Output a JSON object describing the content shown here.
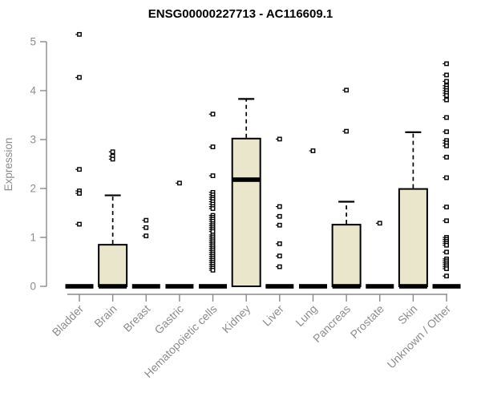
{
  "chart_data": {
    "type": "boxplot",
    "title": "ENSG00000227713 - AC116609.1",
    "ylabel": "Expression",
    "xlabel": "",
    "ylim": [
      0,
      5.3
    ],
    "yticks": [
      0,
      1,
      2,
      3,
      4,
      5
    ],
    "grid": false,
    "legend": "none",
    "colors": {
      "box_fill": "#EAE6CC",
      "box_border": "#000000",
      "median": "#000000",
      "whisker": "#000000",
      "axis": "#8a8a8a",
      "tick_label": "#8c8c8c",
      "title": "#000000",
      "background": "#ffffff"
    },
    "categories": [
      "Bladder",
      "Brain",
      "Breast",
      "Gastric",
      "Hematopoietic cells",
      "Kidney",
      "Liver",
      "Lung",
      "Pancreas",
      "Prostate",
      "Skin",
      "Unknown / Other"
    ],
    "series": [
      {
        "label": "Bladder",
        "whisker_low": 0,
        "q1": 0,
        "median": 0,
        "q3": 0,
        "whisker_high": 0,
        "outliers": [
          5.15,
          4.27,
          2.39,
          1.95,
          1.9,
          1.27
        ]
      },
      {
        "label": "Brain",
        "whisker_low": 0,
        "q1": 0,
        "median": 0,
        "q3": 0.85,
        "whisker_high": 1.86,
        "outliers": [
          2.75,
          2.66,
          2.6
        ]
      },
      {
        "label": "Breast",
        "whisker_low": 0,
        "q1": 0,
        "median": 0,
        "q3": 0,
        "whisker_high": 0,
        "outliers": [
          1.35,
          1.2,
          1.03
        ]
      },
      {
        "label": "Gastric",
        "whisker_low": 0,
        "q1": 0,
        "median": 0,
        "q3": 0,
        "whisker_high": 0,
        "outliers": [
          2.11
        ]
      },
      {
        "label": "Hematopoietic cells",
        "whisker_low": 0,
        "q1": 0,
        "median": 0,
        "q3": 0,
        "whisker_high": 0,
        "outliers": [
          3.52,
          2.85,
          2.26,
          1.92,
          1.87,
          1.82,
          1.78,
          1.73,
          1.68,
          1.63,
          1.59,
          1.45,
          1.41,
          1.37,
          1.33,
          1.28,
          1.24,
          1.2,
          1.16,
          1.12,
          1.05,
          1.01,
          0.97,
          0.93,
          0.89,
          0.85,
          0.81,
          0.77,
          0.73,
          0.69,
          0.65,
          0.61,
          0.57,
          0.53,
          0.49,
          0.45,
          0.41,
          0.37,
          0.33
        ]
      },
      {
        "label": "Kidney",
        "whisker_low": 0,
        "q1": 0,
        "median": 2.18,
        "q3": 3.02,
        "whisker_high": 3.83,
        "outliers": []
      },
      {
        "label": "Liver",
        "whisker_low": 0,
        "q1": 0,
        "median": 0,
        "q3": 0,
        "whisker_high": 0,
        "outliers": [
          3.01,
          1.63,
          1.43,
          1.25,
          0.87,
          0.62,
          0.4
        ]
      },
      {
        "label": "Lung",
        "whisker_low": 0,
        "q1": 0,
        "median": 0,
        "q3": 0,
        "whisker_high": 0,
        "outliers": [
          2.77
        ]
      },
      {
        "label": "Pancreas",
        "whisker_low": 0,
        "q1": 0,
        "median": 0,
        "q3": 1.26,
        "whisker_high": 1.73,
        "outliers": [
          4.01,
          3.17
        ]
      },
      {
        "label": "Prostate",
        "whisker_low": 0,
        "q1": 0,
        "median": 0,
        "q3": 0,
        "whisker_high": 0,
        "outliers": [
          1.29
        ]
      },
      {
        "label": "Skin",
        "whisker_low": 0,
        "q1": 0,
        "median": 0,
        "q3": 1.99,
        "whisker_high": 3.15,
        "outliers": []
      },
      {
        "label": "Unknown / Other",
        "whisker_low": 0,
        "q1": 0,
        "median": 0,
        "q3": 0,
        "whisker_high": 0,
        "outliers": [
          4.55,
          4.32,
          4.19,
          4.1,
          4.05,
          4.0,
          3.95,
          3.9,
          3.81,
          3.45,
          3.16,
          2.98,
          2.93,
          2.87,
          2.64,
          2.22,
          1.62,
          1.34,
          1.0,
          0.96,
          0.92,
          0.88,
          0.84,
          0.7,
          0.56,
          0.52,
          0.48,
          0.44,
          0.4,
          0.36,
          0.21
        ]
      }
    ]
  }
}
